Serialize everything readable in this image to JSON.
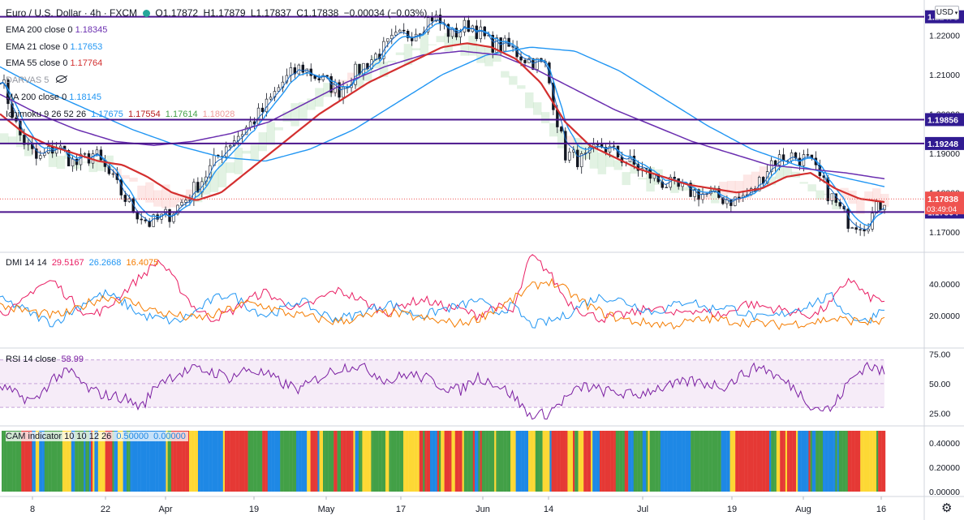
{
  "header": {
    "symbol": "Euro / U.S. Dollar · 4h · FXCM",
    "open": "O1.17872",
    "high": "H1.17879",
    "low": "L1.17837",
    "close": "C1.17838",
    "change": "−0.00034 (−0.03%)"
  },
  "currency_button": "USD",
  "indicators": {
    "ema200": {
      "label": "EMA 200 close 0",
      "value": "1.18345",
      "color": "#6b2fb0"
    },
    "ema21": {
      "label": "EMA 21 close 0",
      "value": "1.17653",
      "color": "#2196f3"
    },
    "ema55": {
      "label": "EMA 55 close 0",
      "value": "1.17764",
      "color": "#d32f2f"
    },
    "darvas": {
      "label": "DARVAS 5"
    },
    "ma200": {
      "label": "MA 200 close 0",
      "value": "1.18145",
      "color": "#2196f3"
    },
    "ichimoku": {
      "label": "Ichimoku 9 26 52 26",
      "v1": "1.17675",
      "v2": "1.17554",
      "v3": "1.17614",
      "v4": "1.18028"
    }
  },
  "dmi": {
    "label": "DMI 14 14",
    "plus": "29.5167",
    "minus": "26.2668",
    "adx": "16.4075",
    "plus_color": "#e91e63",
    "minus_color": "#2196f3",
    "adx_color": "#f57c00"
  },
  "rsi": {
    "label": "RSI 14 close",
    "value": "58.99",
    "color": "#7b1fa2"
  },
  "cam": {
    "label": "CAM indicator 10 10 12 26",
    "v1": "0.50000",
    "v2": "0.00000",
    "colors": [
      "#43a047",
      "#e53935",
      "#fdd835",
      "#1e88e5"
    ]
  },
  "chart_data": [
    {
      "type": "line",
      "title": "Euro / U.S. Dollar · 4h · FXCM",
      "x": [
        "8",
        "22",
        "Apr",
        "19",
        "May",
        "17",
        "Jun",
        "14",
        "Jul",
        "19",
        "Aug",
        "16"
      ],
      "ylim": [
        1.165,
        1.229
      ],
      "yticks": [
        "1.22000",
        "1.21000",
        "1.20000",
        "1.19000",
        "1.18000",
        "1.17000"
      ],
      "price_points": [
        1.21,
        1.195,
        1.188,
        1.192,
        1.187,
        1.19,
        1.183,
        1.176,
        1.172,
        1.1745,
        1.179,
        1.185,
        1.192,
        1.196,
        1.201,
        1.208,
        1.212,
        1.209,
        1.206,
        1.211,
        1.215,
        1.219,
        1.221,
        1.225,
        1.22,
        1.223,
        1.218,
        1.217,
        1.214,
        1.212,
        1.19,
        1.188,
        1.192,
        1.189,
        1.186,
        1.183,
        1.181,
        1.18,
        1.179,
        1.178,
        1.18,
        1.188,
        1.1895,
        1.188,
        1.18,
        1.173,
        1.172,
        1.1784
      ],
      "ema55_points": [
        1.2,
        1.195,
        1.192,
        1.19,
        1.188,
        1.187,
        1.184,
        1.18,
        1.178,
        1.18,
        1.185,
        1.19,
        1.195,
        1.2,
        1.204,
        1.208,
        1.211,
        1.214,
        1.217,
        1.218,
        1.217,
        1.214,
        1.208,
        1.198,
        1.192,
        1.189,
        1.186,
        1.184,
        1.182,
        1.181,
        1.18,
        1.181,
        1.184,
        1.185,
        1.181,
        1.1784,
        1.1776
      ],
      "ema200_points": [
        1.205,
        1.2,
        1.196,
        1.193,
        1.192,
        1.193,
        1.195,
        1.198,
        1.203,
        1.208,
        1.212,
        1.215,
        1.216,
        1.215,
        1.211,
        1.206,
        1.201,
        1.197,
        1.193,
        1.19,
        1.187,
        1.186,
        1.185,
        1.1835
      ],
      "ma200_points": [
        1.212,
        1.206,
        1.201,
        1.196,
        1.192,
        1.189,
        1.188,
        1.191,
        1.196,
        1.203,
        1.21,
        1.215,
        1.217,
        1.216,
        1.211,
        1.204,
        1.197,
        1.191,
        1.187,
        1.184,
        1.1815
      ],
      "levels": [
        {
          "value": "1.22473",
          "y": 1.22473
        },
        {
          "value": "1.19856",
          "y": 1.19856
        },
        {
          "value": "1.19248",
          "y": 1.19248
        },
        {
          "value": "1.17504",
          "y": 1.17504
        }
      ],
      "last_price": "1.17838",
      "countdown": "03:49:04"
    },
    {
      "type": "line",
      "title": "DMI 14 14",
      "ylim": [
        0,
        60
      ],
      "yticks": [
        "40.0000",
        "20.0000"
      ],
      "series": [
        {
          "name": "+DI",
          "values": [
            22,
            25,
            38,
            42,
            30,
            20,
            24,
            35,
            45,
            55,
            40,
            25,
            18,
            22,
            30,
            35,
            28,
            24,
            30,
            36,
            32,
            26,
            22,
            28,
            30,
            26,
            24,
            20,
            26,
            22,
            58,
            48,
            30,
            22,
            18,
            20,
            22,
            26,
            20,
            24,
            22,
            20,
            28,
            26,
            24,
            22,
            20,
            28,
            44,
            32,
            29.5
          ]
        },
        {
          "name": "−DI",
          "values": [
            30,
            26,
            20,
            15,
            22,
            30,
            34,
            28,
            20,
            18,
            16,
            22,
            30,
            34,
            26,
            20,
            24,
            30,
            22,
            18,
            20,
            24,
            28,
            22,
            20,
            24,
            26,
            30,
            22,
            26,
            14,
            16,
            20,
            28,
            32,
            30,
            26,
            22,
            26,
            30,
            24,
            26,
            22,
            18,
            20,
            24,
            28,
            32,
            20,
            16,
            26.3
          ]
        },
        {
          "name": "ADX",
          "values": [
            26,
            24,
            22,
            20,
            22,
            28,
            32,
            30,
            26,
            22,
            20,
            18,
            20,
            24,
            28,
            26,
            22,
            20,
            18,
            16,
            18,
            20,
            22,
            20,
            18,
            16,
            15,
            18,
            24,
            30,
            38,
            42,
            36,
            28,
            22,
            18,
            16,
            15,
            14,
            16,
            18,
            17,
            16,
            15,
            14,
            15,
            16,
            18,
            17,
            16,
            16.4
          ]
        }
      ]
    },
    {
      "type": "line",
      "title": "RSI 14 close",
      "ylim": [
        15,
        80
      ],
      "yticks": [
        "75.00",
        "50.00",
        "25.00"
      ],
      "series": [
        {
          "name": "RSI",
          "values": [
            48,
            40,
            35,
            55,
            60,
            45,
            40,
            38,
            30,
            52,
            58,
            62,
            60,
            55,
            62,
            58,
            50,
            45,
            55,
            62,
            66,
            60,
            52,
            58,
            55,
            48,
            44,
            56,
            50,
            40,
            22,
            25,
            38,
            48,
            44,
            42,
            40,
            46,
            48,
            52,
            50,
            48,
            58,
            65,
            55,
            45,
            30,
            28,
            52,
            66,
            59
          ]
        }
      ]
    },
    {
      "type": "bar",
      "title": "CAM indicator 10 10 12 26",
      "ylim": [
        0,
        0.5
      ],
      "yticks": [
        "0.40000",
        "0.20000",
        "0.00000"
      ]
    }
  ]
}
